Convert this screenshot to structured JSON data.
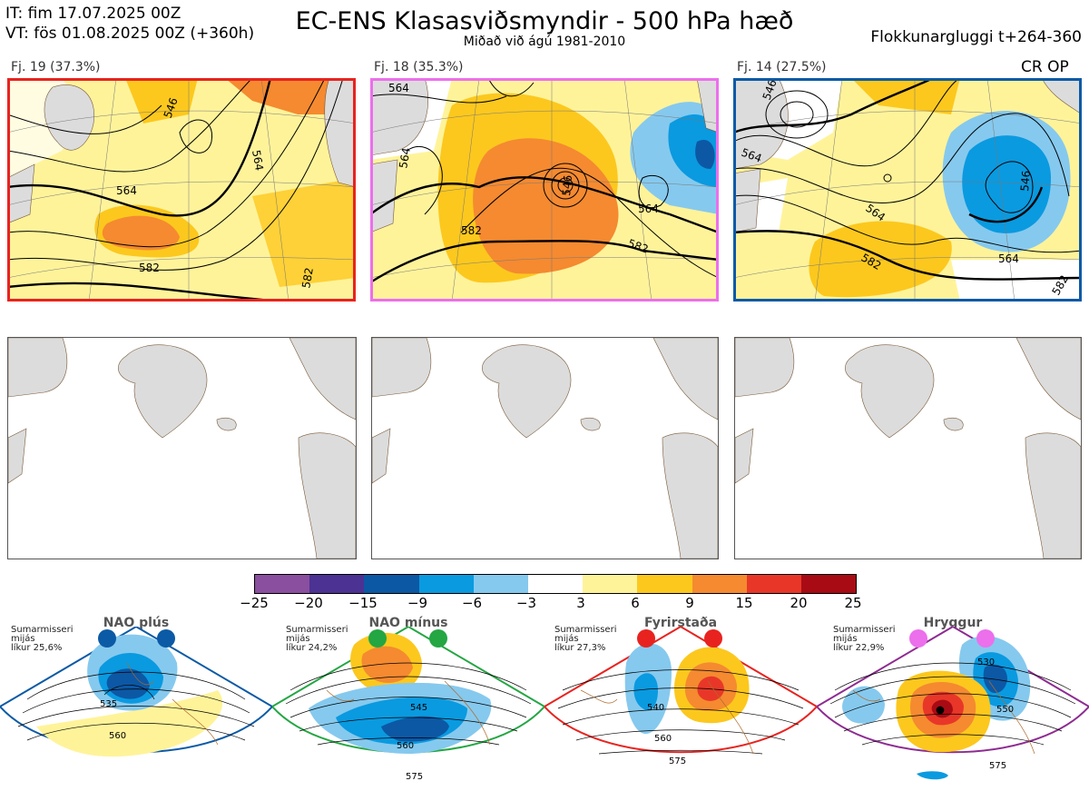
{
  "header": {
    "init_time": "IT: fim 17.07.2025 00Z",
    "valid_time": "VT: fös 01.08.2025 00Z  (+360h)",
    "title": "EC-ENS Klasasviðsmyndir - 500 hPa hæð",
    "subtitle": "Miðað við ágú 1981-2010",
    "window": "Flokkunargluggi t+264-360"
  },
  "clusters": [
    {
      "label": "Fj. 19 (37.3%)",
      "frame_color": "#e8231f",
      "contours": [
        "564",
        "546",
        "564",
        "582",
        "582"
      ],
      "operational": ""
    },
    {
      "label": "Fj. 18 (35.3%)",
      "frame_color": "#ec6fec",
      "contours": [
        "564",
        "564",
        "546",
        "564",
        "582",
        "582"
      ],
      "operational": ""
    },
    {
      "label": "Fj. 14 (27.5%)",
      "frame_color": "#0b5aa6",
      "contours": [
        "546",
        "564",
        "546",
        "564",
        "582",
        "564",
        "582"
      ],
      "operational": "CR OP"
    }
  ],
  "colorbar": {
    "ticks": [
      "−25",
      "−20",
      "−15",
      "−9",
      "−6",
      "−3",
      "3",
      "6",
      "9",
      "15",
      "20",
      "25"
    ],
    "colors": [
      "#8a4f9e",
      "#4b3293",
      "#0c58a5",
      "#0a9ae0",
      "#86c9ee",
      "#ffffff",
      "#fff39a",
      "#fcc81e",
      "#f58a30",
      "#e83728",
      "#a80b14"
    ]
  },
  "regimes": [
    {
      "name": "NAO plús",
      "note": [
        "Sumarmisseri",
        "mijás",
        "líkur 25,6%"
      ],
      "frame_color": "#0b5aa6",
      "dot_color": "#0b5aa6",
      "contours": [
        "535",
        "560"
      ]
    },
    {
      "name": "NAO mínus",
      "note": [
        "Sumarmisseri",
        "mijás",
        "líkur 24,2%"
      ],
      "frame_color": "#24a643",
      "dot_color": "#24a643",
      "contours": [
        "545",
        "560",
        "575"
      ]
    },
    {
      "name": "Fyrirstaða",
      "note": [
        "Sumarmisseri",
        "mijás",
        "líkur 27,3%"
      ],
      "frame_color": "#e8231f",
      "dot_color": "#e8231f",
      "contours": [
        "540",
        "560",
        "575"
      ]
    },
    {
      "name": "Hryggur",
      "note": [
        "Sumarmisseri",
        "mijás",
        "líkur 22,9%"
      ],
      "frame_color": "#8e2b92",
      "dot_color": "#ec6fec",
      "contours": [
        "530",
        "550",
        "575"
      ]
    }
  ]
}
